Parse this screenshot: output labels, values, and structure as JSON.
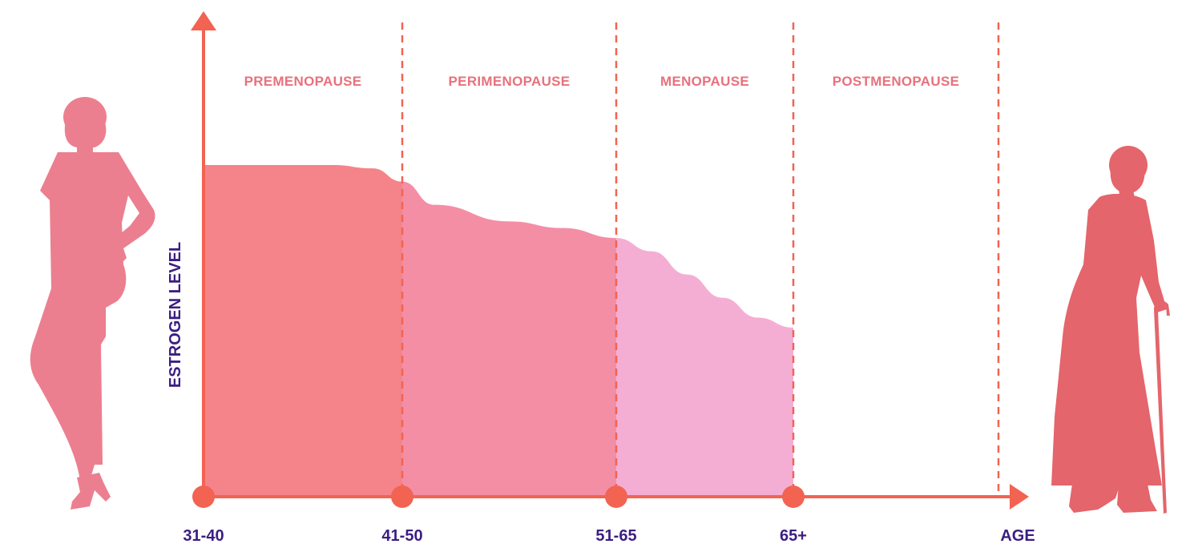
{
  "chart_data": {
    "type": "area",
    "title": "",
    "xlabel": "AGE",
    "ylabel": "ESTROGEN LEVEL",
    "categories": [
      "31-40",
      "41-50",
      "51-65",
      "65+"
    ],
    "phases": [
      {
        "name": "PREMENOPAUSE"
      },
      {
        "name": "PERIMENOPAUSE"
      },
      {
        "name": "MENOPAUSE"
      },
      {
        "name": "POSTMENOPAUSE"
      }
    ],
    "x": [
      0,
      0.35,
      0.5,
      0.65,
      0.85,
      1.0,
      1.15,
      1.5,
      1.75,
      2.0,
      2.2,
      2.4,
      2.6,
      2.8,
      3.0
    ],
    "values": [
      100,
      100,
      100,
      100,
      99,
      95,
      88,
      83,
      81,
      78,
      74,
      67,
      60,
      54,
      51
    ],
    "ylim": [
      0,
      160
    ],
    "xlim": [
      0,
      4
    ],
    "grid": false,
    "colors": {
      "segment_1": "#f4848a",
      "segment_2": "#f48ea5",
      "segment_3": "#f5aed3",
      "axis": "#f26352",
      "phase_label": "#e8717c",
      "tick_label": "#3b1e82",
      "woman_young": "#ec7f8f",
      "woman_old": "#e4656b"
    }
  },
  "illustrations": {
    "left": "young-woman-silhouette-icon",
    "right": "elderly-woman-with-cane-silhouette-icon"
  }
}
